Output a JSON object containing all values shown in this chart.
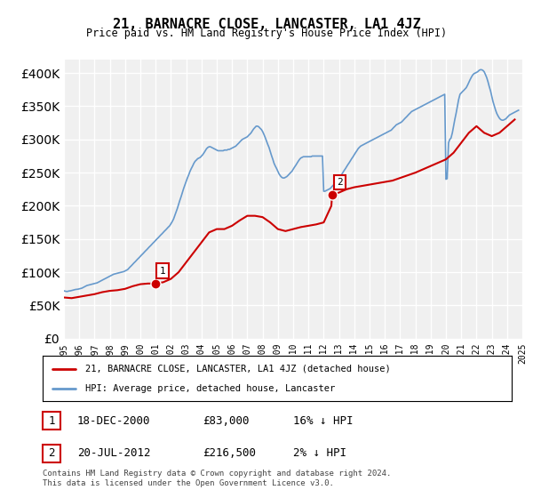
{
  "title": "21, BARNACRE CLOSE, LANCASTER, LA1 4JZ",
  "subtitle": "Price paid vs. HM Land Registry's House Price Index (HPI)",
  "hpi_color": "#6699cc",
  "price_color": "#cc0000",
  "background_color": "#ffffff",
  "plot_bg_color": "#f0f0f0",
  "grid_color": "#ffffff",
  "ylim": [
    0,
    420000
  ],
  "yticks": [
    0,
    50000,
    100000,
    150000,
    200000,
    250000,
    300000,
    350000,
    400000
  ],
  "legend_entries": [
    "21, BARNACRE CLOSE, LANCASTER, LA1 4JZ (detached house)",
    "HPI: Average price, detached house, Lancaster"
  ],
  "transactions": [
    {
      "label": "1",
      "date": "18-DEC-2000",
      "price": "£83,000",
      "hpi_note": "16% ↓ HPI"
    },
    {
      "label": "2",
      "date": "20-JUL-2012",
      "price": "£216,500",
      "hpi_note": "2% ↓ HPI"
    }
  ],
  "footnote": "Contains HM Land Registry data © Crown copyright and database right 2024.\nThis data is licensed under the Open Government Licence v3.0.",
  "transaction_points": [
    {
      "year": 2000.96,
      "price": 83000
    },
    {
      "year": 2012.55,
      "price": 216500
    }
  ],
  "hpi_data": {
    "years": [
      1995.0,
      1995.08,
      1995.17,
      1995.25,
      1995.33,
      1995.42,
      1995.5,
      1995.58,
      1995.67,
      1995.75,
      1995.83,
      1995.92,
      1996.0,
      1996.08,
      1996.17,
      1996.25,
      1996.33,
      1996.42,
      1996.5,
      1996.58,
      1996.67,
      1996.75,
      1996.83,
      1996.92,
      1997.0,
      1997.08,
      1997.17,
      1997.25,
      1997.33,
      1997.42,
      1997.5,
      1997.58,
      1997.67,
      1997.75,
      1997.83,
      1997.92,
      1998.0,
      1998.08,
      1998.17,
      1998.25,
      1998.33,
      1998.42,
      1998.5,
      1998.58,
      1998.67,
      1998.75,
      1998.83,
      1998.92,
      1999.0,
      1999.08,
      1999.17,
      1999.25,
      1999.33,
      1999.42,
      1999.5,
      1999.58,
      1999.67,
      1999.75,
      1999.83,
      1999.92,
      2000.0,
      2000.08,
      2000.17,
      2000.25,
      2000.33,
      2000.42,
      2000.5,
      2000.58,
      2000.67,
      2000.75,
      2000.83,
      2000.92,
      2001.0,
      2001.08,
      2001.17,
      2001.25,
      2001.33,
      2001.42,
      2001.5,
      2001.58,
      2001.67,
      2001.75,
      2001.83,
      2001.92,
      2002.0,
      2002.08,
      2002.17,
      2002.25,
      2002.33,
      2002.42,
      2002.5,
      2002.58,
      2002.67,
      2002.75,
      2002.83,
      2002.92,
      2003.0,
      2003.08,
      2003.17,
      2003.25,
      2003.33,
      2003.42,
      2003.5,
      2003.58,
      2003.67,
      2003.75,
      2003.83,
      2003.92,
      2004.0,
      2004.08,
      2004.17,
      2004.25,
      2004.33,
      2004.42,
      2004.5,
      2004.58,
      2004.67,
      2004.75,
      2004.83,
      2004.92,
      2005.0,
      2005.08,
      2005.17,
      2005.25,
      2005.33,
      2005.42,
      2005.5,
      2005.58,
      2005.67,
      2005.75,
      2005.83,
      2005.92,
      2006.0,
      2006.08,
      2006.17,
      2006.25,
      2006.33,
      2006.42,
      2006.5,
      2006.58,
      2006.67,
      2006.75,
      2006.83,
      2006.92,
      2007.0,
      2007.08,
      2007.17,
      2007.25,
      2007.33,
      2007.42,
      2007.5,
      2007.58,
      2007.67,
      2007.75,
      2007.83,
      2007.92,
      2008.0,
      2008.08,
      2008.17,
      2008.25,
      2008.33,
      2008.42,
      2008.5,
      2008.58,
      2008.67,
      2008.75,
      2008.83,
      2008.92,
      2009.0,
      2009.08,
      2009.17,
      2009.25,
      2009.33,
      2009.42,
      2009.5,
      2009.58,
      2009.67,
      2009.75,
      2009.83,
      2009.92,
      2010.0,
      2010.08,
      2010.17,
      2010.25,
      2010.33,
      2010.42,
      2010.5,
      2010.58,
      2010.67,
      2010.75,
      2010.83,
      2010.92,
      2011.0,
      2011.08,
      2011.17,
      2011.25,
      2011.33,
      2011.42,
      2011.5,
      2011.58,
      2011.67,
      2011.75,
      2011.83,
      2011.92,
      2012.0,
      2012.08,
      2012.17,
      2012.25,
      2012.33,
      2012.42,
      2012.5,
      2012.58,
      2012.67,
      2012.75,
      2012.83,
      2012.92,
      2013.0,
      2013.08,
      2013.17,
      2013.25,
      2013.33,
      2013.42,
      2013.5,
      2013.58,
      2013.67,
      2013.75,
      2013.83,
      2013.92,
      2014.0,
      2014.08,
      2014.17,
      2014.25,
      2014.33,
      2014.42,
      2014.5,
      2014.58,
      2014.67,
      2014.75,
      2014.83,
      2014.92,
      2015.0,
      2015.08,
      2015.17,
      2015.25,
      2015.33,
      2015.42,
      2015.5,
      2015.58,
      2015.67,
      2015.75,
      2015.83,
      2015.92,
      2016.0,
      2016.08,
      2016.17,
      2016.25,
      2016.33,
      2016.42,
      2016.5,
      2016.58,
      2016.67,
      2016.75,
      2016.83,
      2016.92,
      2017.0,
      2017.08,
      2017.17,
      2017.25,
      2017.33,
      2017.42,
      2017.5,
      2017.58,
      2017.67,
      2017.75,
      2017.83,
      2017.92,
      2018.0,
      2018.08,
      2018.17,
      2018.25,
      2018.33,
      2018.42,
      2018.5,
      2018.58,
      2018.67,
      2018.75,
      2018.83,
      2018.92,
      2019.0,
      2019.08,
      2019.17,
      2019.25,
      2019.33,
      2019.42,
      2019.5,
      2019.58,
      2019.67,
      2019.75,
      2019.83,
      2019.92,
      2020.0,
      2020.08,
      2020.17,
      2020.25,
      2020.33,
      2020.42,
      2020.5,
      2020.58,
      2020.67,
      2020.75,
      2020.83,
      2020.92,
      2021.0,
      2021.08,
      2021.17,
      2021.25,
      2021.33,
      2021.42,
      2021.5,
      2021.58,
      2021.67,
      2021.75,
      2021.83,
      2021.92,
      2022.0,
      2022.08,
      2022.17,
      2022.25,
      2022.33,
      2022.42,
      2022.5,
      2022.58,
      2022.67,
      2022.75,
      2022.83,
      2022.92,
      2023.0,
      2023.08,
      2023.17,
      2023.25,
      2023.33,
      2023.42,
      2023.5,
      2023.58,
      2023.67,
      2023.75,
      2023.83,
      2023.92,
      2024.0,
      2024.08,
      2024.17,
      2024.25,
      2024.33,
      2024.42,
      2024.5,
      2024.58,
      2024.67,
      2024.75
    ],
    "values": [
      72000,
      71500,
      71000,
      71200,
      71800,
      72000,
      72500,
      73000,
      73500,
      74000,
      74200,
      74500,
      75000,
      75500,
      76000,
      77000,
      78000,
      79000,
      80000,
      80500,
      81000,
      81500,
      82000,
      82500,
      83000,
      83500,
      84000,
      85000,
      86000,
      87000,
      88000,
      89000,
      90000,
      91000,
      92000,
      93000,
      94000,
      95000,
      96000,
      97000,
      97500,
      98000,
      98500,
      99000,
      99500,
      100000,
      100500,
      101000,
      102000,
      103000,
      104000,
      106000,
      108000,
      110000,
      112000,
      114000,
      116000,
      118000,
      120000,
      122000,
      124000,
      126000,
      128000,
      130000,
      132000,
      134000,
      136000,
      138000,
      140000,
      142000,
      144000,
      146000,
      148000,
      150000,
      152000,
      154000,
      156000,
      158000,
      160000,
      162000,
      164000,
      166000,
      168000,
      170000,
      173000,
      176000,
      180000,
      185000,
      190000,
      196000,
      202000,
      208000,
      214000,
      220000,
      226000,
      232000,
      237000,
      242000,
      247000,
      252000,
      256000,
      260000,
      264000,
      267000,
      269000,
      271000,
      272000,
      273000,
      275000,
      277000,
      280000,
      283000,
      286000,
      288000,
      289000,
      289000,
      288000,
      287000,
      286000,
      285000,
      284000,
      283000,
      283000,
      283000,
      283000,
      283000,
      284000,
      284000,
      284000,
      285000,
      285000,
      286000,
      287000,
      288000,
      289000,
      290000,
      292000,
      294000,
      296000,
      298000,
      300000,
      301000,
      302000,
      303000,
      304000,
      306000,
      308000,
      310000,
      313000,
      316000,
      318000,
      320000,
      320000,
      319000,
      317000,
      315000,
      312000,
      308000,
      303000,
      298000,
      293000,
      288000,
      282000,
      276000,
      270000,
      264000,
      260000,
      256000,
      252000,
      248000,
      245000,
      243000,
      242000,
      242000,
      243000,
      244000,
      246000,
      248000,
      250000,
      252000,
      255000,
      258000,
      261000,
      264000,
      267000,
      270000,
      272000,
      273000,
      274000,
      274000,
      274000,
      274000,
      274000,
      274000,
      274000,
      275000,
      275000,
      275000,
      275000,
      275000,
      275000,
      275000,
      275000,
      275000,
      222000,
      222000,
      223000,
      224000,
      225000,
      226000,
      228000,
      230000,
      232000,
      234000,
      236000,
      238000,
      241000,
      244000,
      247000,
      250000,
      253000,
      256000,
      259000,
      262000,
      265000,
      268000,
      271000,
      274000,
      277000,
      280000,
      283000,
      286000,
      288000,
      290000,
      291000,
      292000,
      293000,
      294000,
      295000,
      296000,
      297000,
      298000,
      299000,
      300000,
      301000,
      302000,
      303000,
      304000,
      305000,
      306000,
      307000,
      308000,
      309000,
      310000,
      311000,
      312000,
      313000,
      314000,
      316000,
      318000,
      320000,
      322000,
      323000,
      324000,
      325000,
      326000,
      328000,
      330000,
      332000,
      334000,
      336000,
      338000,
      340000,
      342000,
      343000,
      344000,
      345000,
      346000,
      347000,
      348000,
      349000,
      350000,
      351000,
      352000,
      353000,
      354000,
      355000,
      356000,
      357000,
      358000,
      359000,
      360000,
      361000,
      362000,
      363000,
      364000,
      365000,
      366000,
      367000,
      368000,
      240000,
      241000,
      295000,
      300000,
      302000,
      310000,
      320000,
      330000,
      340000,
      350000,
      360000,
      368000,
      370000,
      372000,
      374000,
      376000,
      378000,
      382000,
      386000,
      390000,
      394000,
      397000,
      399000,
      400000,
      401000,
      402000,
      404000,
      405000,
      405000,
      404000,
      402000,
      398000,
      393000,
      387000,
      380000,
      373000,
      365000,
      357000,
      350000,
      344000,
      339000,
      335000,
      332000,
      330000,
      329000,
      329000,
      330000,
      331000,
      333000,
      335000,
      337000,
      338000,
      339000,
      340000,
      341000,
      342000,
      343000,
      344000
    ]
  },
  "price_line_data": {
    "years": [
      1995.0,
      1995.5,
      1996.0,
      1996.5,
      1997.0,
      1997.5,
      1998.0,
      1998.5,
      1999.0,
      1999.5,
      2000.0,
      2000.5,
      2000.96,
      2001.0,
      2001.5,
      2002.0,
      2002.5,
      2003.0,
      2003.5,
      2004.0,
      2004.5,
      2005.0,
      2005.5,
      2006.0,
      2006.5,
      2007.0,
      2007.5,
      2008.0,
      2008.5,
      2009.0,
      2009.5,
      2010.0,
      2010.5,
      2011.0,
      2011.5,
      2012.0,
      2012.5,
      2012.55,
      2013.0,
      2013.5,
      2014.0,
      2014.5,
      2015.0,
      2015.5,
      2016.0,
      2016.5,
      2017.0,
      2017.5,
      2018.0,
      2018.5,
      2019.0,
      2019.5,
      2020.0,
      2020.5,
      2021.0,
      2021.5,
      2022.0,
      2022.5,
      2023.0,
      2023.5,
      2024.0,
      2024.5
    ],
    "values": [
      62000,
      61000,
      63000,
      65000,
      67000,
      70000,
      72000,
      73000,
      75000,
      79000,
      82000,
      83000,
      83000,
      83000,
      85000,
      90000,
      100000,
      115000,
      130000,
      145000,
      160000,
      165000,
      165000,
      170000,
      178000,
      185000,
      185000,
      183000,
      175000,
      165000,
      162000,
      165000,
      168000,
      170000,
      172000,
      175000,
      200000,
      216500,
      220000,
      225000,
      228000,
      230000,
      232000,
      234000,
      236000,
      238000,
      242000,
      246000,
      250000,
      255000,
      260000,
      265000,
      270000,
      280000,
      295000,
      310000,
      320000,
      310000,
      305000,
      310000,
      320000,
      330000
    ]
  }
}
